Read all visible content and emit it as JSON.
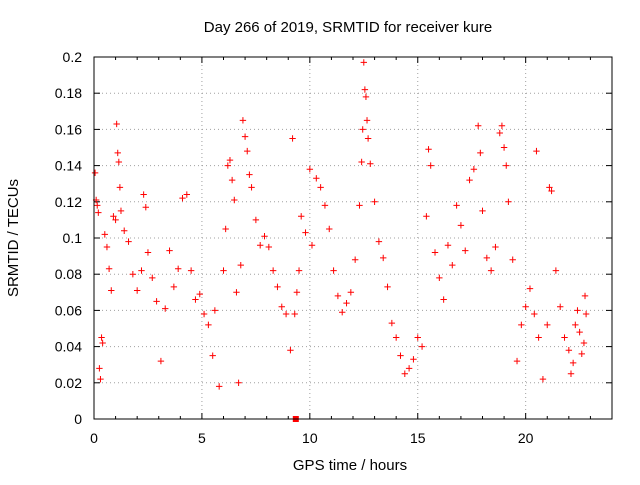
{
  "chart_data": {
    "type": "scatter",
    "title": "Day 266 of 2019, SRMTID for receiver kure",
    "xlabel": "GPS time / hours",
    "ylabel": "SRMTID / TECUs",
    "xlim": [
      0,
      24
    ],
    "ylim": [
      0,
      0.2
    ],
    "grid": true,
    "marker": "+",
    "series_color": "#ff0000",
    "x_ticks": [
      0,
      5,
      10,
      15,
      20
    ],
    "x_tick_labels": [
      "0",
      "5",
      "10",
      "15",
      "20"
    ],
    "y_ticks": [
      0,
      0.02,
      0.04,
      0.06,
      0.08,
      0.1,
      0.12,
      0.14,
      0.16,
      0.18,
      0.2
    ],
    "y_tick_labels": [
      "0",
      "0.02",
      "0.04",
      "0.06",
      "0.08",
      "0.1",
      "0.12",
      "0.14",
      "0.16",
      "0.18",
      "0.2"
    ],
    "series": [
      {
        "name": "SRMTID",
        "points": [
          [
            0.05,
            0.136
          ],
          [
            0.1,
            0.121
          ],
          [
            0.15,
            0.118
          ],
          [
            0.2,
            0.114
          ],
          [
            0.25,
            0.028
          ],
          [
            0.3,
            0.022
          ],
          [
            0.35,
            0.045
          ],
          [
            0.4,
            0.042
          ],
          [
            0.5,
            0.102
          ],
          [
            0.6,
            0.095
          ],
          [
            0.7,
            0.083
          ],
          [
            0.8,
            0.071
          ],
          [
            0.9,
            0.112
          ],
          [
            1.0,
            0.11
          ],
          [
            1.05,
            0.163
          ],
          [
            1.1,
            0.147
          ],
          [
            1.15,
            0.142
          ],
          [
            1.2,
            0.128
          ],
          [
            1.25,
            0.115
          ],
          [
            1.4,
            0.104
          ],
          [
            1.6,
            0.098
          ],
          [
            1.8,
            0.08
          ],
          [
            2.0,
            0.071
          ],
          [
            2.2,
            0.082
          ],
          [
            2.3,
            0.124
          ],
          [
            2.4,
            0.117
          ],
          [
            2.5,
            0.092
          ],
          [
            2.7,
            0.078
          ],
          [
            2.9,
            0.065
          ],
          [
            3.1,
            0.032
          ],
          [
            3.3,
            0.061
          ],
          [
            3.5,
            0.093
          ],
          [
            3.7,
            0.073
          ],
          [
            3.9,
            0.083
          ],
          [
            4.1,
            0.122
          ],
          [
            4.3,
            0.124
          ],
          [
            4.5,
            0.082
          ],
          [
            4.7,
            0.066
          ],
          [
            4.9,
            0.069
          ],
          [
            5.1,
            0.058
          ],
          [
            5.3,
            0.052
          ],
          [
            5.5,
            0.035
          ],
          [
            5.6,
            0.06
          ],
          [
            5.8,
            0.018
          ],
          [
            6.0,
            0.082
          ],
          [
            6.1,
            0.105
          ],
          [
            6.2,
            0.14
          ],
          [
            6.3,
            0.143
          ],
          [
            6.4,
            0.132
          ],
          [
            6.5,
            0.121
          ],
          [
            6.6,
            0.07
          ],
          [
            6.7,
            0.02
          ],
          [
            6.8,
            0.085
          ],
          [
            6.9,
            0.165
          ],
          [
            7.0,
            0.156
          ],
          [
            7.1,
            0.148
          ],
          [
            7.2,
            0.135
          ],
          [
            7.3,
            0.128
          ],
          [
            7.5,
            0.11
          ],
          [
            7.7,
            0.096
          ],
          [
            7.9,
            0.101
          ],
          [
            8.1,
            0.095
          ],
          [
            8.3,
            0.082
          ],
          [
            8.5,
            0.073
          ],
          [
            8.7,
            0.062
          ],
          [
            8.9,
            0.058
          ],
          [
            9.1,
            0.038
          ],
          [
            9.2,
            0.155
          ],
          [
            9.3,
            0.058
          ],
          [
            9.4,
            0.07
          ],
          [
            9.5,
            0.082
          ],
          [
            9.6,
            0.112
          ],
          [
            9.8,
            0.103
          ],
          [
            10.0,
            0.138
          ],
          [
            10.1,
            0.096
          ],
          [
            10.3,
            0.133
          ],
          [
            10.5,
            0.128
          ],
          [
            10.7,
            0.118
          ],
          [
            10.9,
            0.105
          ],
          [
            11.1,
            0.082
          ],
          [
            11.3,
            0.068
          ],
          [
            11.5,
            0.059
          ],
          [
            11.7,
            0.064
          ],
          [
            11.9,
            0.07
          ],
          [
            12.1,
            0.088
          ],
          [
            12.3,
            0.118
          ],
          [
            12.4,
            0.142
          ],
          [
            12.45,
            0.16
          ],
          [
            12.5,
            0.197
          ],
          [
            12.55,
            0.182
          ],
          [
            12.6,
            0.178
          ],
          [
            12.65,
            0.165
          ],
          [
            12.7,
            0.155
          ],
          [
            12.8,
            0.141
          ],
          [
            13.0,
            0.12
          ],
          [
            13.2,
            0.098
          ],
          [
            13.4,
            0.089
          ],
          [
            13.6,
            0.073
          ],
          [
            13.8,
            0.053
          ],
          [
            14.0,
            0.045
          ],
          [
            14.2,
            0.035
          ],
          [
            14.4,
            0.025
          ],
          [
            14.6,
            0.028
          ],
          [
            14.8,
            0.033
          ],
          [
            15.0,
            0.045
          ],
          [
            15.2,
            0.04
          ],
          [
            15.4,
            0.112
          ],
          [
            15.5,
            0.149
          ],
          [
            15.6,
            0.14
          ],
          [
            15.8,
            0.092
          ],
          [
            16.0,
            0.078
          ],
          [
            16.2,
            0.066
          ],
          [
            16.4,
            0.096
          ],
          [
            16.6,
            0.085
          ],
          [
            16.8,
            0.118
          ],
          [
            17.0,
            0.107
          ],
          [
            17.2,
            0.093
          ],
          [
            17.4,
            0.132
          ],
          [
            17.6,
            0.138
          ],
          [
            17.8,
            0.162
          ],
          [
            17.9,
            0.147
          ],
          [
            18.0,
            0.115
          ],
          [
            18.2,
            0.089
          ],
          [
            18.4,
            0.082
          ],
          [
            18.6,
            0.095
          ],
          [
            18.8,
            0.158
          ],
          [
            18.9,
            0.162
          ],
          [
            19.0,
            0.15
          ],
          [
            19.1,
            0.14
          ],
          [
            19.2,
            0.12
          ],
          [
            19.4,
            0.088
          ],
          [
            19.6,
            0.032
          ],
          [
            19.8,
            0.052
          ],
          [
            20.0,
            0.062
          ],
          [
            20.2,
            0.072
          ],
          [
            20.4,
            0.058
          ],
          [
            20.5,
            0.148
          ],
          [
            20.6,
            0.045
          ],
          [
            20.8,
            0.022
          ],
          [
            21.0,
            0.052
          ],
          [
            21.1,
            0.128
          ],
          [
            21.2,
            0.126
          ],
          [
            21.4,
            0.082
          ],
          [
            21.6,
            0.062
          ],
          [
            21.8,
            0.045
          ],
          [
            22.0,
            0.038
          ],
          [
            22.1,
            0.025
          ],
          [
            22.2,
            0.031
          ],
          [
            22.3,
            0.052
          ],
          [
            22.4,
            0.06
          ],
          [
            22.5,
            0.048
          ],
          [
            22.6,
            0.036
          ],
          [
            22.7,
            0.042
          ],
          [
            22.75,
            0.068
          ],
          [
            22.8,
            0.058
          ]
        ]
      }
    ],
    "extra_marker": {
      "x": 9.35,
      "y": 0.0,
      "shape": "square"
    }
  }
}
